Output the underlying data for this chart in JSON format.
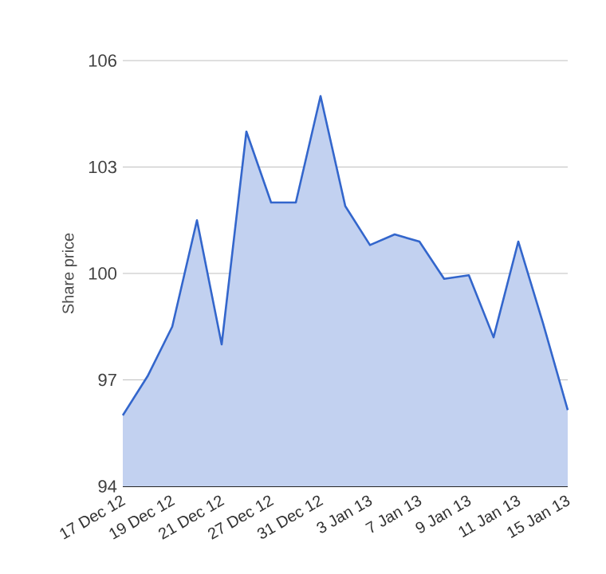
{
  "chart_data": {
    "type": "area",
    "ylabel": "Share price",
    "categories": [
      "17 Dec 12",
      null,
      "19 Dec 12",
      null,
      "21 Dec 12",
      null,
      "27 Dec 12",
      null,
      "31 Dec 12",
      null,
      "3 Jan 13",
      null,
      "7 Jan 13",
      null,
      "9 Jan 13",
      null,
      "11 Jan 13",
      null,
      "15 Jan 13"
    ],
    "values": [
      96.0,
      97.1,
      98.5,
      101.5,
      98.0,
      104.0,
      102.0,
      102.0,
      105.0,
      101.9,
      100.8,
      101.1,
      100.9,
      99.85,
      99.95,
      98.2,
      100.9,
      98.6,
      96.15
    ],
    "color": "#3366cc",
    "ylim": [
      94,
      106
    ],
    "yticks": [
      94,
      97,
      100,
      103,
      106
    ],
    "grid": "y"
  }
}
